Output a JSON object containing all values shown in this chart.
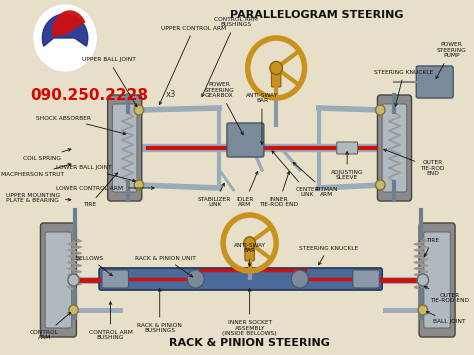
{
  "title_top": "PARALLELOGRAM STEERING",
  "title_bottom": "RACK & PINION STEERING",
  "phone_text": "090.250.2228",
  "phone_small": "x3",
  "bg_color": "#e8dfc8",
  "title_color": "#111111",
  "phone_color": "#dd0000",
  "figsize": [
    4.74,
    3.55
  ],
  "dpi": 100,
  "gray_tire": "#8a8a8a",
  "steel_color": "#9aabba",
  "steel_dark": "#6a7f8f",
  "red_bar": "#cc1111",
  "gold_wheel": "#c8921e",
  "gold_dark": "#8B6010",
  "spring_color": "#999999",
  "logo_red": "#cc1111",
  "logo_blue": "#1a2d8a",
  "logo_white": "#ffffff"
}
